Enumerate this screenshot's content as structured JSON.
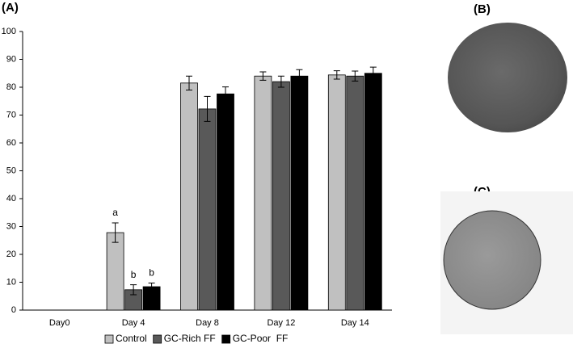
{
  "chart_data": {
    "type": "bar",
    "panel_labels": [
      "(A)",
      "(B)",
      "(C)"
    ],
    "categories": [
      "Day0",
      "Day 4",
      "Day 8",
      "Day 12",
      "Day 14"
    ],
    "series": [
      {
        "name": "Control",
        "color": "#c0c0c0",
        "values": [
          0,
          27.8,
          81.5,
          84,
          84.4
        ],
        "errors": [
          0,
          3.5,
          2.5,
          1.5,
          1.5
        ]
      },
      {
        "name": "GC-Rich FF",
        "color": "#595959",
        "values": [
          0,
          7.3,
          72.2,
          82,
          84
        ],
        "errors": [
          0,
          1.8,
          4.5,
          2,
          1.8
        ]
      },
      {
        "name": "GC-Poor  FF",
        "color": "#000000",
        "values": [
          0,
          8.4,
          77.6,
          84,
          85
        ],
        "errors": [
          0,
          1.3,
          2.5,
          2.3,
          2.2
        ]
      }
    ],
    "annotations": [
      "a",
      "b",
      "b"
    ],
    "ylim": [
      0,
      100
    ],
    "yticks": [
      0,
      10,
      20,
      30,
      40,
      50,
      60,
      70,
      80,
      90,
      100
    ],
    "grid": false
  }
}
